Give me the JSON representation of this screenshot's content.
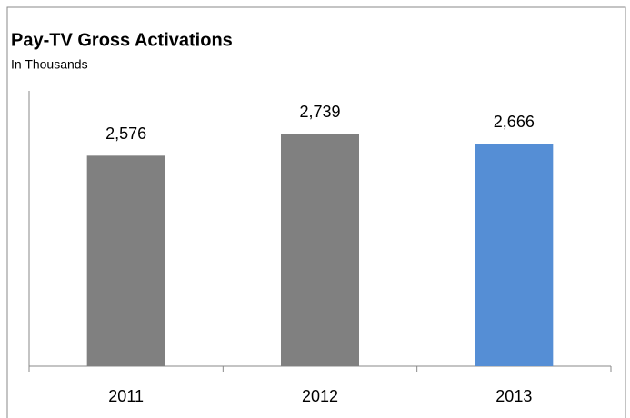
{
  "chart_data": {
    "type": "bar",
    "title": "Pay-TV Gross Activations",
    "subtitle": "In Thousands",
    "categories": [
      "2011",
      "2012",
      "2013"
    ],
    "values": [
      2576,
      2739,
      2666
    ],
    "value_labels": [
      "2,576",
      "2,739",
      "2,666"
    ],
    "colors": [
      "#808080",
      "#808080",
      "#558ed5"
    ],
    "ylim": [
      1000,
      3000
    ]
  }
}
